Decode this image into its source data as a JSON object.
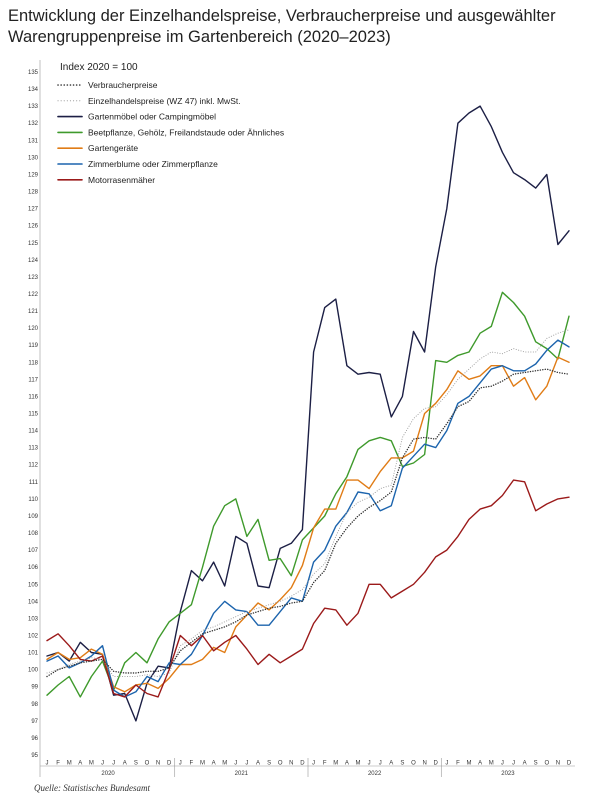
{
  "title_line1": "Entwicklung der Einzelhandelspreise, Verbraucherpreise und ausgewählter",
  "title_line2": "Warengruppenpreise im Gartenbereich (2020–2023)",
  "source": "Quelle: Statistisches Bundesamt",
  "chart_data": {
    "type": "line",
    "index_note": "Index 2020 = 100",
    "ylim": [
      95,
      135
    ],
    "yticks": [
      95,
      96,
      97,
      98,
      99,
      100,
      101,
      102,
      103,
      104,
      105,
      106,
      107,
      108,
      109,
      110,
      111,
      112,
      113,
      114,
      115,
      116,
      117,
      118,
      119,
      120,
      121,
      122,
      123,
      124,
      125,
      126,
      127,
      128,
      129,
      130,
      131,
      132,
      133,
      134,
      135
    ],
    "month_labels": [
      "J",
      "F",
      "M",
      "A",
      "M",
      "J",
      "J",
      "A",
      "S",
      "O",
      "N",
      "D"
    ],
    "years": [
      "2020",
      "2021",
      "2022",
      "2023"
    ],
    "series": [
      {
        "name": "Verbraucherpreise",
        "color": "#333333",
        "style": "dotted-bold",
        "values": [
          99.6,
          100.0,
          100.2,
          100.4,
          100.5,
          100.6,
          99.9,
          99.8,
          99.8,
          99.9,
          99.9,
          100.1,
          101.1,
          101.6,
          102.1,
          102.3,
          102.5,
          102.8,
          103.2,
          103.4,
          103.6,
          103.7,
          103.9,
          104.0,
          105.1,
          105.8,
          107.4,
          108.3,
          109.0,
          109.5,
          109.9,
          110.4,
          112.4,
          113.5,
          113.6,
          113.5,
          114.4,
          115.4,
          115.7,
          116.5,
          116.6,
          116.9,
          117.3,
          117.4,
          117.5,
          117.6,
          117.4,
          117.3
        ]
      },
      {
        "name": "Einzelhandelspreise (WZ 47) inkl. MwSt.",
        "color": "#9a9a9a",
        "style": "dotted",
        "values": [
          99.8,
          100.0,
          100.3,
          100.5,
          100.7,
          100.6,
          99.6,
          99.6,
          99.6,
          99.7,
          99.6,
          99.8,
          101.4,
          101.8,
          102.3,
          102.5,
          102.8,
          103.1,
          103.4,
          103.6,
          103.8,
          104.0,
          104.3,
          104.7,
          105.6,
          106.2,
          107.8,
          109.2,
          109.8,
          110.1,
          110.6,
          110.8,
          113.6,
          114.7,
          115.3,
          115.4,
          116.1,
          117.0,
          117.6,
          118.2,
          118.6,
          118.5,
          118.8,
          118.6,
          118.6,
          119.4,
          119.7,
          119.9
        ]
      },
      {
        "name": "Gartenmöbel oder Campingmöbel",
        "color": "#1c1f45",
        "style": "solid",
        "values": [
          100.8,
          101.0,
          100.5,
          101.6,
          101.0,
          100.9,
          98.5,
          98.6,
          97.0,
          99.2,
          100.2,
          100.1,
          103.4,
          105.8,
          105.2,
          106.3,
          104.9,
          107.8,
          107.4,
          104.9,
          104.8,
          107.1,
          107.4,
          108.2,
          118.6,
          121.2,
          121.7,
          117.8,
          117.3,
          117.4,
          117.3,
          114.8,
          116.0,
          119.8,
          118.6,
          123.6,
          127.0,
          132.0,
          132.6,
          133.0,
          131.8,
          130.3,
          129.1,
          128.7,
          128.2,
          129.0,
          124.9,
          125.7
        ]
      },
      {
        "name": "Beetpflanze, Gehölz, Freilandstaude oder Ähnliches",
        "color": "#3f9a2c",
        "style": "solid",
        "values": [
          98.5,
          99.1,
          99.6,
          98.4,
          99.6,
          100.5,
          98.8,
          100.4,
          101.0,
          100.4,
          101.8,
          102.8,
          103.3,
          103.8,
          106.0,
          108.4,
          109.6,
          110.0,
          107.8,
          108.8,
          106.4,
          106.5,
          105.5,
          107.6,
          108.3,
          109.0,
          110.3,
          111.3,
          112.9,
          113.4,
          113.6,
          113.4,
          111.9,
          112.1,
          112.6,
          118.1,
          118.0,
          118.4,
          118.6,
          119.7,
          120.1,
          122.1,
          121.5,
          120.7,
          119.2,
          118.8,
          118.2,
          120.7
        ]
      },
      {
        "name": "Gartengeräte",
        "color": "#e07c16",
        "style": "solid",
        "values": [
          100.6,
          101.0,
          100.6,
          100.7,
          101.2,
          100.9,
          99.0,
          98.7,
          99.1,
          99.2,
          98.9,
          99.5,
          100.3,
          100.3,
          100.6,
          101.3,
          101.0,
          102.5,
          103.2,
          103.9,
          103.5,
          104.1,
          104.8,
          106.1,
          108.3,
          109.4,
          109.4,
          111.1,
          111.1,
          110.6,
          111.6,
          112.4,
          112.4,
          112.8,
          115.0,
          115.6,
          116.4,
          117.5,
          117.0,
          117.2,
          117.8,
          117.8,
          116.6,
          117.1,
          115.8,
          116.6,
          118.3,
          118.0
        ]
      },
      {
        "name": "Zimmerblume oder Zimmerpflanze",
        "color": "#1c64ad",
        "style": "solid",
        "values": [
          100.5,
          100.8,
          100.1,
          100.4,
          100.8,
          101.4,
          98.8,
          98.4,
          98.7,
          99.6,
          99.3,
          100.4,
          100.3,
          100.9,
          102.0,
          103.3,
          104.0,
          103.5,
          103.4,
          102.6,
          102.6,
          103.4,
          104.2,
          104.0,
          106.3,
          107.0,
          108.4,
          109.2,
          110.4,
          110.3,
          109.3,
          109.6,
          111.8,
          112.5,
          113.2,
          113.0,
          114.0,
          115.6,
          116.0,
          116.8,
          117.6,
          117.8,
          117.5,
          117.5,
          117.9,
          118.7,
          119.3,
          118.9
        ]
      },
      {
        "name": "Motorrasenmäher",
        "color": "#9b1a1a",
        "style": "solid",
        "values": [
          101.7,
          102.1,
          101.4,
          100.6,
          100.5,
          100.8,
          98.6,
          98.4,
          99.1,
          98.6,
          98.4,
          100.0,
          102.0,
          101.4,
          102.0,
          101.1,
          101.6,
          102.0,
          101.2,
          100.3,
          100.9,
          100.4,
          100.8,
          101.2,
          102.7,
          103.6,
          103.5,
          102.6,
          103.3,
          105.0,
          105.0,
          104.2,
          104.6,
          105.0,
          105.7,
          106.6,
          107.0,
          107.8,
          108.8,
          109.4,
          109.6,
          110.2,
          111.1,
          111.0,
          109.3,
          109.7,
          110.0,
          110.1
        ]
      }
    ]
  }
}
